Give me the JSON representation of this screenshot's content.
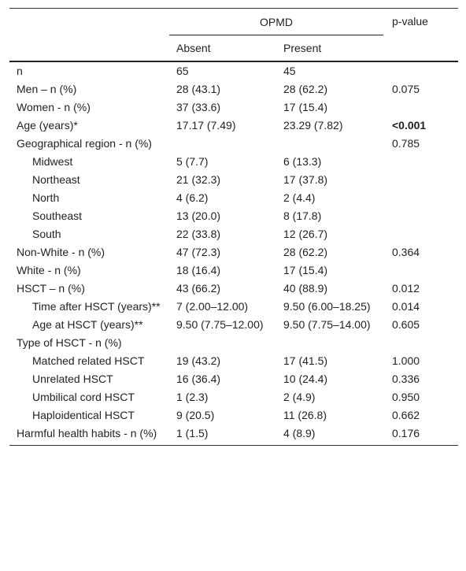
{
  "header": {
    "group": "OPMD",
    "pvalue": "p-value",
    "columns": [
      "Absent",
      "Present"
    ]
  },
  "rows": [
    {
      "label": "n",
      "absent": "65",
      "present": "45"
    },
    {
      "label": "Men – n (%)",
      "absent": "28 (43.1)",
      "present": "28 (62.2)",
      "p": "0.075"
    },
    {
      "label": "Women - n (%)",
      "absent": "37 (33.6)",
      "present": "17 (15.4)"
    },
    {
      "label": "Age (years)*",
      "absent": "17.17 (7.49)",
      "present": "23.29 (7.82)",
      "p": "<0.001",
      "emphasis": true
    },
    {
      "label": "Geographical region - n (%)",
      "p": "0.785",
      "items": [
        {
          "label": "Midwest",
          "absent": "5 (7.7)",
          "present": "6 (13.3)"
        },
        {
          "label": "Northeast",
          "absent": "21 (32.3)",
          "present": "17 (37.8)"
        },
        {
          "label": "North",
          "absent": "4 (6.2)",
          "present": "2 (4.4)"
        },
        {
          "label": "Southeast",
          "absent": "13 (20.0)",
          "present": "8 (17.8)"
        },
        {
          "label": "South",
          "absent": "22 (33.8)",
          "present": "12 (26.7)"
        }
      ]
    },
    {
      "label": "Non-White - n (%)",
      "absent": "47 (72.3)",
      "present": "28 (62.2)",
      "p": "0.364"
    },
    {
      "label": "White - n (%)",
      "absent": "18 (16.4)",
      "present": "17 (15.4)"
    },
    {
      "label": "HSCT – n (%)",
      "absent": "43 (66.2)",
      "present": "40 (88.9)",
      "p": "0.012",
      "items": [
        {
          "label": "Time after HSCT (years)**",
          "absent": "7 (2.00–12.00)",
          "present": "9.50 (6.00–18.25)",
          "p": "0.014"
        },
        {
          "label": "Age at HSCT (years)**",
          "absent": "9.50 (7.75–12.00)",
          "present": "9.50 (7.75–14.00)",
          "p": "0.605"
        }
      ]
    },
    {
      "label": "Type of HSCT - n (%)",
      "items": [
        {
          "label": "Matched related HSCT",
          "absent": "19 (43.2)",
          "present": "17 (41.5)",
          "p": "1.000"
        },
        {
          "label": "Unrelated HSCT",
          "absent": "16 (36.4)",
          "present": "10 (24.4)",
          "p": "0.336"
        },
        {
          "label": "Umbilical cord HSCT",
          "absent": "1 (2.3)",
          "present": "2 (4.9)",
          "p": "0.950"
        },
        {
          "label": "Haploidentical HSCT",
          "absent": "9 (20.5)",
          "present": "11 (26.8)",
          "p": "0.662"
        }
      ]
    },
    {
      "label": "Harmful health habits - n (%)",
      "absent": "1 (1.5)",
      "present": "4 (8.9)",
      "p": "0.176"
    }
  ]
}
